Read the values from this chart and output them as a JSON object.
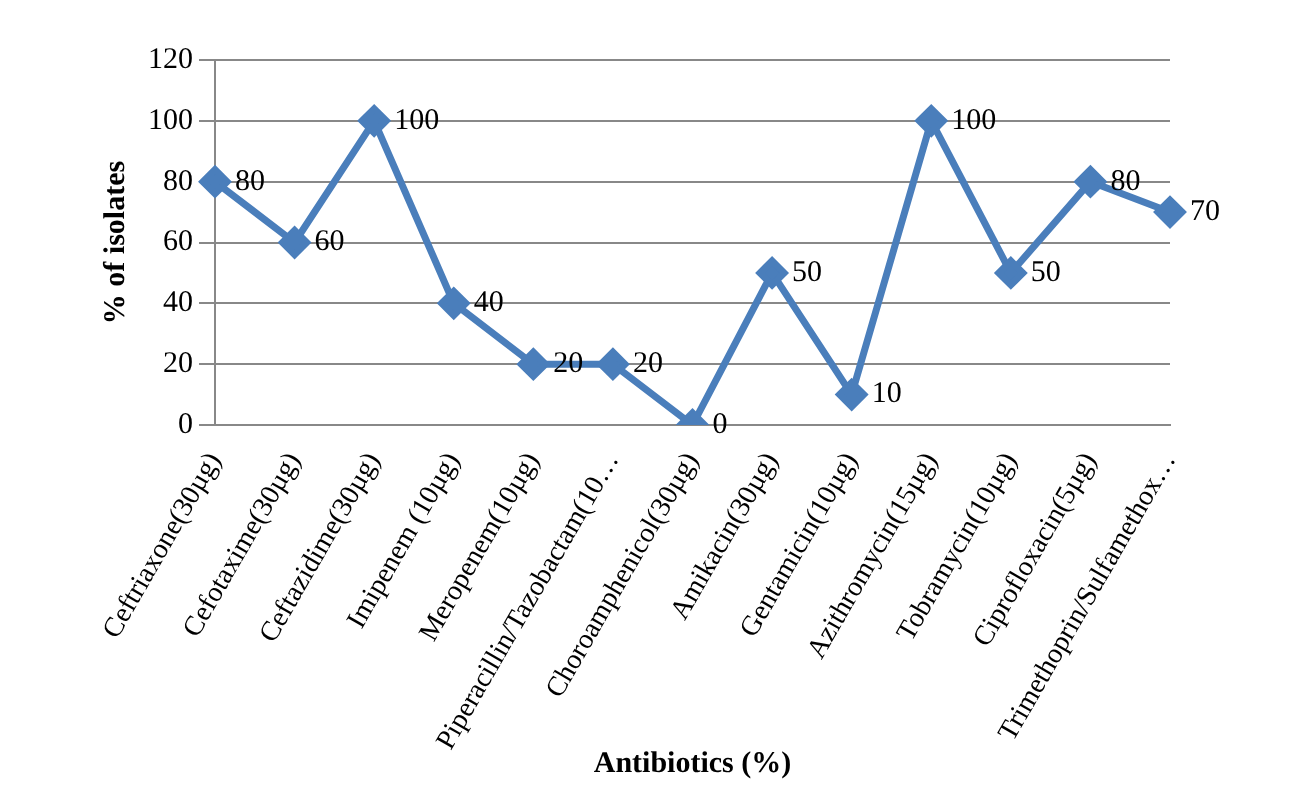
{
  "chart_data": {
    "type": "line",
    "xlabel": "Antibiotics (%)",
    "ylabel": "% of isolates",
    "categories": [
      "Ceftriaxone(30µg)",
      "Cefotaxime(30µg)",
      "Ceftazidime(30µg)",
      "Imipenem (10µg)",
      "Meropenem(10µg)",
      "Piperacillin/Tazobactam(10…",
      "Choroamphenicol(30µg)",
      "Amikacin(30µg)",
      "Gentamicin(10µg)",
      "Azithromycin(15µg)",
      "Tobramycin(10µg)",
      "Ciprofloxacin(5µg)",
      "Trimethoprin/Sulfamethox…"
    ],
    "series": [
      {
        "color": "#4a7ebb",
        "values": [
          80,
          60,
          100,
          40,
          20,
          20,
          0,
          50,
          10,
          100,
          50,
          80,
          70
        ]
      }
    ],
    "ylim": [
      0,
      120
    ],
    "yticks": [
      0,
      20,
      40,
      60,
      80,
      100,
      120
    ],
    "grid": "y",
    "legend": false,
    "marker": "diamond",
    "line_style": "solid",
    "data_labels": true
  }
}
